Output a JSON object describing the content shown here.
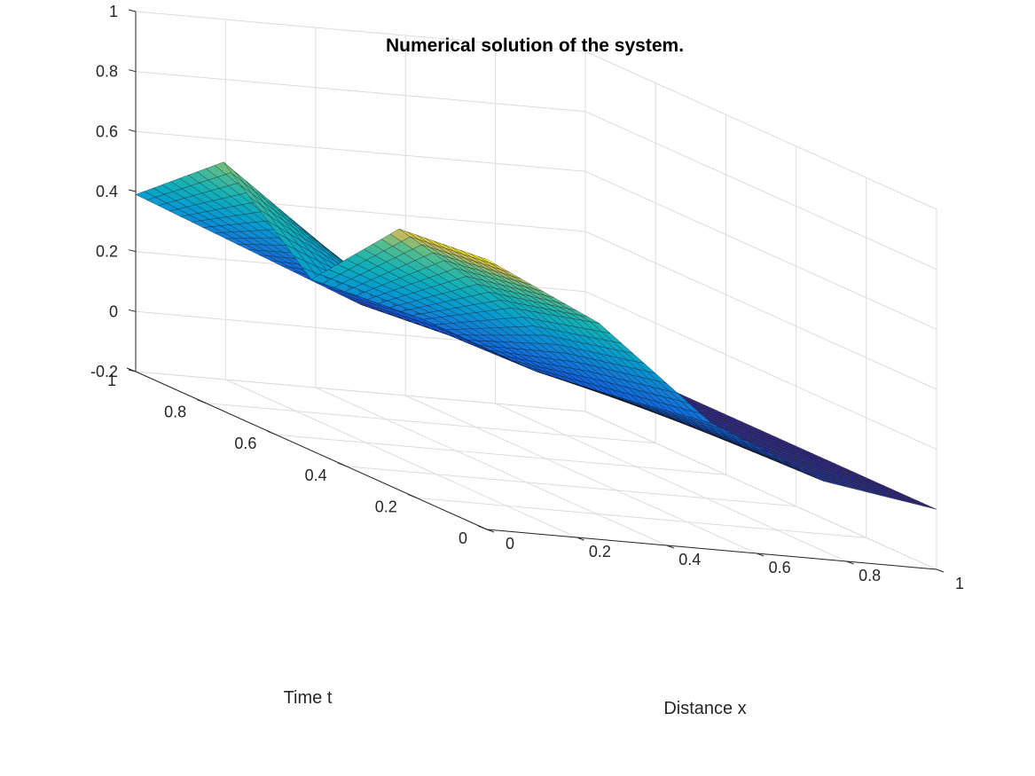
{
  "chart_data": {
    "type": "surface",
    "title": "Numerical solution of the system.",
    "xlabel": "Distance x",
    "ylabel": "Time t",
    "zlabel": "",
    "xlim": [
      0,
      1
    ],
    "ylim": [
      0,
      1
    ],
    "zlim": [
      -0.2,
      1
    ],
    "x_ticks": [
      0,
      0.2,
      0.4,
      0.6,
      0.8,
      1
    ],
    "x_tick_labels": [
      "0",
      "0.2",
      "0.4",
      "0.6",
      "0.8",
      "1"
    ],
    "y_ticks": [
      0,
      0.2,
      0.4,
      0.6,
      0.8,
      1
    ],
    "y_tick_labels": [
      "0",
      "0.2",
      "0.4",
      "0.6",
      "0.8",
      "1"
    ],
    "z_ticks": [
      -0.2,
      0,
      0.2,
      0.4,
      0.6,
      0.8,
      1
    ],
    "z_tick_labels": [
      "-0.2",
      "0",
      "0.2",
      "0.4",
      "0.6",
      "0.8",
      "1"
    ],
    "grid": true,
    "colormap": "parula",
    "mesh_edge_color": "#000000",
    "surface_samples": {
      "x": [
        0,
        0.25,
        0.5,
        0.75,
        1
      ],
      "t": [
        0,
        0.25,
        0.5,
        0.75,
        1
      ],
      "u": [
        [
          0.7,
          0.52,
          0.22,
          0.06,
          0.0
        ],
        [
          0.67,
          0.44,
          0.17,
          0.05,
          0.0
        ],
        [
          0.37,
          0.27,
          0.13,
          0.04,
          0.0
        ],
        [
          0.63,
          0.35,
          0.12,
          0.03,
          0.0
        ],
        [
          0.39,
          0.24,
          0.09,
          0.02,
          0.0
        ]
      ]
    }
  }
}
